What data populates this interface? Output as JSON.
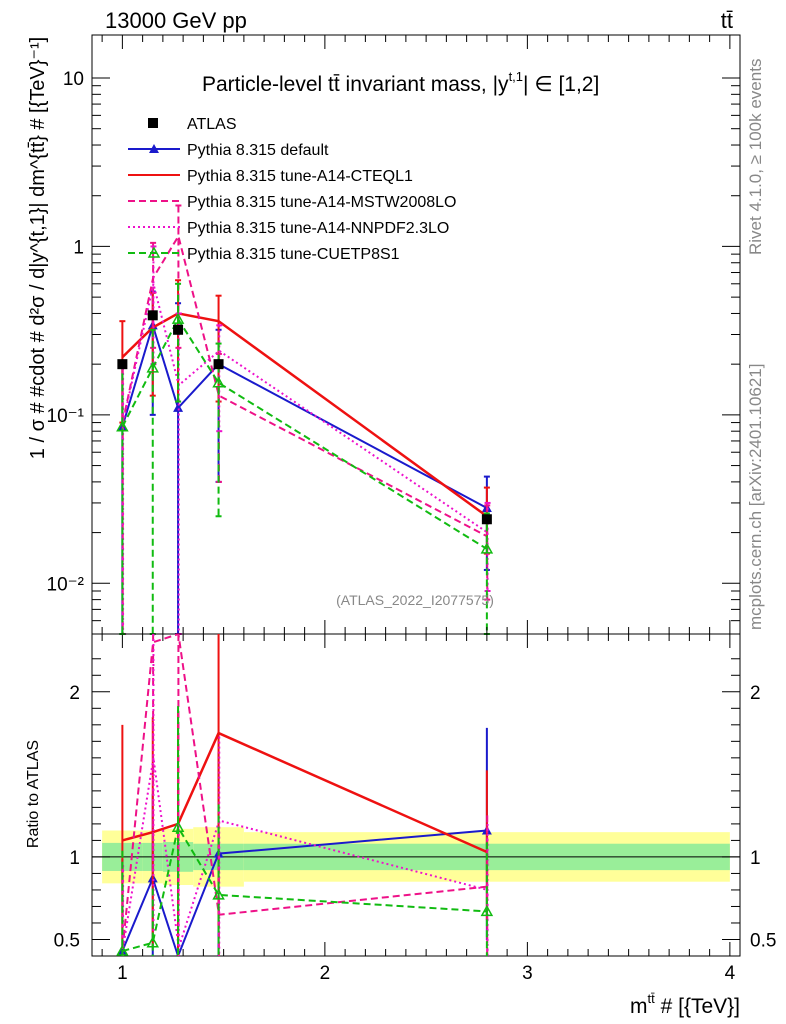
{
  "header": {
    "left": "13000 GeV pp",
    "right": "tt̄"
  },
  "side_text": {
    "top": "Rivet 4.1.0, ≥ 100k events",
    "bottom": "mcplots.cern.ch [arXiv:2401.10621]"
  },
  "watermark": "(ATLAS_2022_I2077575)",
  "chart_data": {
    "type": "line",
    "title": "Particle-level tt̄ invariant mass, |y^{t,1}| ∈ [1,2]",
    "title_main": "Particle-level tt̄ invariant mass, |y",
    "title_sup": "t,1",
    "title_end": "| ∈ [1,2]",
    "xlabel": "m^{tt̄} # [{TeV}]",
    "xlabel_main": "m",
    "xlabel_sup": "tt̄",
    "xlabel_end": " # [{TeV}]",
    "ylabel": "1 / σ # #cdot # d²σ / d|y^{t,1}| dm^{tt̄} # [{TeV}⁻¹]",
    "ratio_ylabel": "Ratio to ATLAS",
    "xlim": [
      0.85,
      4.05
    ],
    "ylim": [
      0.005,
      18
    ],
    "ratio_ylim": [
      0.4,
      2.35
    ],
    "x_ticks": [
      1,
      2,
      3,
      4
    ],
    "x_tick_labels": [
      "1",
      "2",
      "3",
      "4"
    ],
    "y_ticks": [
      0.01,
      0.1,
      1,
      10
    ],
    "y_tick_labels": [
      "10⁻²",
      "10⁻¹",
      "1",
      "10"
    ],
    "ratio_ticks": [
      0.5,
      1,
      2
    ],
    "ratio_tick_labels": [
      "0.5",
      "1",
      "2"
    ],
    "bins": [
      0.9,
      1.1,
      1.2,
      1.35,
      1.6,
      4.0
    ],
    "x": [
      1.0,
      1.15,
      1.275,
      1.475,
      2.8
    ],
    "data": {
      "name": "ATLAS",
      "values": [
        0.2,
        0.39,
        0.32,
        0.2,
        0.024
      ],
      "stat_band": [
        0.085,
        0.085,
        0.09,
        0.08,
        0.08
      ],
      "total_band": [
        0.16,
        0.16,
        0.17,
        0.18,
        0.15
      ]
    },
    "series": [
      {
        "name": "Pythia 8.315 default",
        "color": "#1a1acc",
        "dash": "solid",
        "marker": "triangle-filled",
        "values": [
          0.085,
          0.34,
          0.11,
          0.2,
          0.028
        ],
        "err_lo": [
          0.085,
          0.24,
          0.11,
          0.16,
          0.016
        ],
        "err_hi": [
          0.11,
          0.2,
          0.35,
          0.12,
          0.015
        ],
        "ratio": [
          0.43,
          0.87,
          0.34,
          1.02,
          1.16
        ]
      },
      {
        "name": "Pythia 8.315 tune-A14-CTEQL1",
        "color": "#ee1111",
        "dash": "solid",
        "marker": "none",
        "values": [
          0.22,
          0.33,
          0.4,
          0.36,
          0.025
        ],
        "err_lo": [
          0.13,
          0.2,
          0.28,
          0.24,
          0.01
        ],
        "err_hi": [
          0.14,
          0.2,
          0.23,
          0.15,
          0.012
        ],
        "ratio": [
          1.1,
          1.15,
          1.2,
          1.75,
          1.03
        ]
      },
      {
        "name": "Pythia 8.315 tune-A14-MSTW2008LO",
        "color": "#ee1188",
        "dash": "dashed",
        "marker": "none",
        "values": [
          0.09,
          0.65,
          1.15,
          0.13,
          0.019
        ],
        "err_lo": [
          0.09,
          0.4,
          0.9,
          0.09,
          0.011
        ],
        "err_hi": [
          0.1,
          0.4,
          0.6,
          0.1,
          0.01
        ],
        "ratio": [
          0.45,
          2.3,
          2.6,
          0.65,
          0.82
        ]
      },
      {
        "name": "Pythia 8.315 tune-A14-NNPDF2.3LO",
        "color": "#ee11cc",
        "dash": "dotted",
        "marker": "none",
        "values": [
          0.09,
          0.6,
          0.15,
          0.24,
          0.02
        ],
        "err_lo": [
          0.09,
          0.4,
          0.15,
          0.16,
          0.011
        ],
        "err_hi": [
          0.1,
          0.4,
          0.25,
          0.1,
          0.01
        ],
        "ratio": [
          0.45,
          1.6,
          0.45,
          1.22,
          0.8
        ]
      },
      {
        "name": "Pythia 8.315 tune-CUETP8S1",
        "color": "#11bb11",
        "dash": "dashed",
        "marker": "triangle-open",
        "values": [
          0.085,
          0.19,
          0.37,
          0.155,
          0.016
        ],
        "err_lo": [
          0.085,
          0.19,
          0.25,
          0.13,
          0.016
        ],
        "err_hi": [
          0.12,
          0.13,
          0.23,
          0.11,
          0.01
        ],
        "ratio": [
          0.43,
          0.48,
          1.18,
          0.77,
          0.67
        ]
      }
    ]
  }
}
